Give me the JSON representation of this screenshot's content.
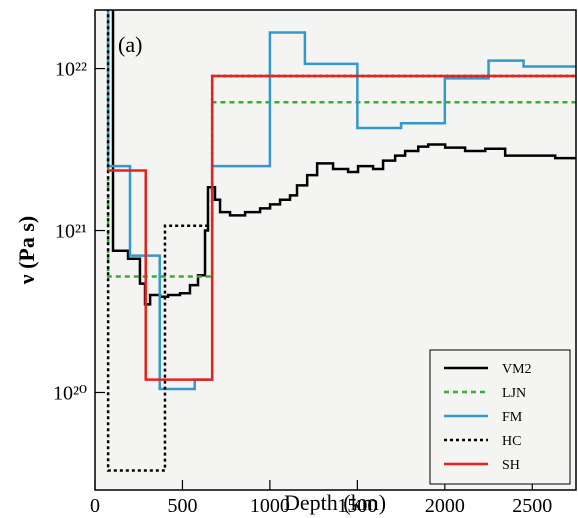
{
  "chart_data": {
    "type": "step",
    "annotation": "(a)",
    "x_label": "Depth (km)",
    "y_label": "ν (Pa s)",
    "log_y": true,
    "xlim": [
      0,
      2750
    ],
    "ylim": [
      2.5e+19,
      2.3e+22
    ],
    "xticks": [
      0,
      500,
      1000,
      1500,
      2000,
      2500
    ],
    "yticks": [
      {
        "value": 1e+20,
        "label": "10²⁰"
      },
      {
        "value": 1e+21,
        "label": "10²¹"
      },
      {
        "value": 1e+22,
        "label": "10²²"
      }
    ],
    "legend_position": "lower right",
    "series": [
      {
        "name": "VM2",
        "color": "#000000",
        "dash": "solid",
        "x": [
          0,
          103,
          189,
          257,
          286,
          315,
          372,
          418,
          486,
          543,
          589,
          629,
          646,
          686,
          715,
          772,
          858,
          944,
          1001,
          1058,
          1115,
          1155,
          1213,
          1270,
          1361,
          1447,
          1504,
          1590,
          1647,
          1716,
          1773,
          1848,
          1905,
          2002,
          2116,
          2231,
          2345,
          2517,
          2631,
          2750
        ],
        "values": [
          3e+22,
          7.5e+20,
          6.7e+20,
          4.7e+20,
          3.5e+20,
          4e+20,
          3.9e+20,
          4e+20,
          4.1e+20,
          4.6e+20,
          5.3e+20,
          1e+21,
          1.85e+21,
          1.55e+21,
          1.3e+21,
          1.24e+21,
          1.3e+21,
          1.37e+21,
          1.45e+21,
          1.55e+21,
          1.65e+21,
          1.9e+21,
          2.2e+21,
          2.6e+21,
          2.4e+21,
          2.3e+21,
          2.5e+21,
          2.4e+21,
          2.7e+21,
          2.9e+21,
          3.1e+21,
          3.3e+21,
          3.4e+21,
          3.25e+21,
          3.1e+21,
          3.2e+21,
          2.9e+21,
          2.9e+21,
          2.8e+21,
          2.8e+21
        ]
      },
      {
        "name": "LJN",
        "color": "#33b033",
        "dash": "dashed",
        "x": [
          0,
          75,
          670,
          2750
        ],
        "values": [
          3e+22,
          5.2e+20,
          6.2e+21,
          6.2e+21
        ]
      },
      {
        "name": "FM",
        "color": "#3399cc",
        "dash": "solid",
        "x": [
          0,
          75,
          200,
          370,
          570,
          670,
          1000,
          1200,
          1500,
          1750,
          2000,
          2250,
          2450,
          2750
        ],
        "values": [
          3e+22,
          2.5e+21,
          7e+20,
          1.05e+20,
          1.2e+20,
          2.5e+21,
          1.67e+22,
          1.07e+22,
          4.3e+21,
          4.6e+21,
          8.7e+21,
          1.12e+22,
          1.03e+22,
          1.03e+22
        ]
      },
      {
        "name": "HC",
        "color": "#000000",
        "dash": "dotted",
        "x": [
          0,
          75,
          400,
          670,
          2750
        ],
        "values": [
          3e+22,
          3.3e+19,
          1.07e+21,
          9e+21,
          9e+21
        ]
      },
      {
        "name": "SH",
        "color": "#e8211c",
        "dash": "solid",
        "x": [
          75,
          290,
          670,
          2750
        ],
        "values": [
          2.35e+21,
          1.2e+20,
          9e+21,
          9e+21
        ]
      }
    ]
  }
}
